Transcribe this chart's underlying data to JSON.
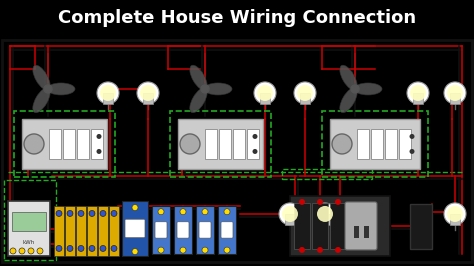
{
  "title": "Complete House Wiring Connection",
  "title_color": "#ffffff",
  "title_bg": "#000000",
  "bg_color": "#f5e6a3",
  "border_color": "#000000",
  "wire_red": "#cc0000",
  "wire_black": "#111111",
  "wire_green_dashed": "#22aa22",
  "switch_board_color": "#d0d0d0",
  "breaker_blue": "#4477cc",
  "breaker_yellow": "#ddaa00",
  "figsize": [
    4.74,
    2.66
  ],
  "dpi": 100
}
